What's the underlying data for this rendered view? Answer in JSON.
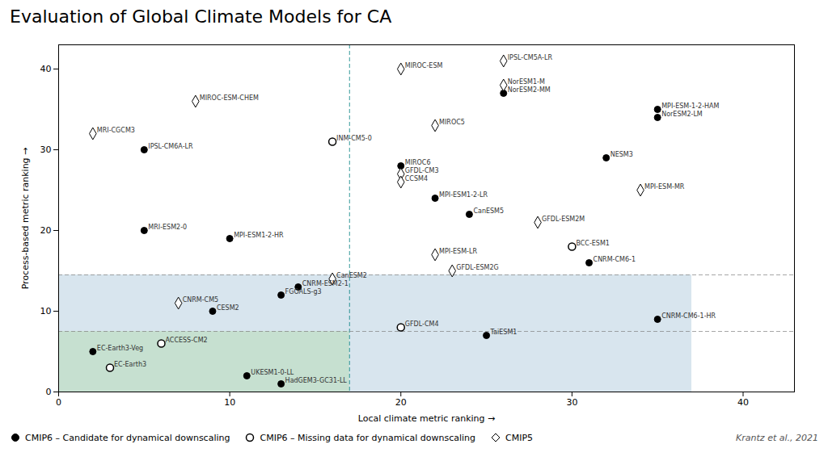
{
  "chart_data": {
    "type": "scatter",
    "title": "Evaluation of Global Climate Models for CA",
    "xlabel": "Local climate metric ranking",
    "ylabel": "Process-based metric ranking",
    "credit": "Krantz et al., 2021",
    "xlim": [
      0,
      43
    ],
    "ylim": [
      0,
      43
    ],
    "xticks": [
      0,
      10,
      20,
      30,
      40
    ],
    "yticks": [
      0,
      10,
      20,
      30,
      40
    ],
    "grid": false,
    "legend": "bottom",
    "shaded_regions": [
      {
        "x1": 0,
        "x2": 37,
        "y1": 0,
        "y2": 14.5,
        "color": "#b8cfe0"
      },
      {
        "x1": 0,
        "x2": 17,
        "y1": 0,
        "y2": 7.5,
        "color": "#b8ddb8"
      }
    ],
    "vlines": [
      {
        "x": 17,
        "color": "teal"
      }
    ],
    "hlines": [
      {
        "y": 14.5,
        "color": "gray"
      },
      {
        "y": 7.5,
        "color": "gray"
      }
    ],
    "line_style": "dashed",
    "series": [
      {
        "name": "CMIP6 – Candidate for dynamical downscaling",
        "marker": "filled_circle",
        "color": "black",
        "x": [
          5,
          5,
          10,
          9,
          13,
          14,
          2,
          11,
          13,
          20,
          22,
          24,
          25,
          26,
          31,
          32,
          35,
          35,
          35
        ],
        "y": [
          30,
          20,
          19,
          10,
          12,
          13,
          5,
          2,
          1,
          28,
          24,
          22,
          7,
          37,
          16,
          29,
          35,
          34,
          9
        ],
        "labels": [
          "IPSL-CM6A-LR",
          "MRI-ESM2-0",
          "MPI-ESM1-2-HR",
          "CESM2",
          "FGOALS-g3",
          "CNRM-ESM2-1",
          "EC-Earth3-Veg",
          "UKESM1-0-LL",
          "HadGEM3-GC31-LL",
          "MIROC6",
          "MPI-ESM1-2-LR",
          "CanESM5",
          "TaiESM1",
          "NorESM2-MM",
          "CNRM-CM6-1",
          "NESM3",
          "MPI-ESM-1-2-HAM",
          "NorESM2-LM",
          "CNRM-CM6-1-HR"
        ]
      },
      {
        "name": "CMIP6 – Missing data for dynamical downscaling",
        "marker": "open_circle",
        "color": "black",
        "x": [
          16,
          6,
          3,
          20,
          30
        ],
        "y": [
          31,
          6,
          3,
          8,
          18
        ],
        "labels": [
          "INM-CM5-0",
          "ACCESS-CM2",
          "EC-Earth3",
          "GFDL-CM4",
          "BCC-ESM1"
        ]
      },
      {
        "name": "CMIP5",
        "marker": "open_diamond",
        "color": "black",
        "x": [
          2,
          8,
          7,
          16,
          20,
          20,
          20,
          22,
          23,
          22,
          26,
          26,
          28,
          34
        ],
        "y": [
          32,
          36,
          11,
          14,
          27,
          26,
          40,
          33,
          15,
          17,
          41,
          38,
          21,
          25
        ],
        "labels": [
          "MRI-CGCM3",
          "MIROC-ESM-CHEM",
          "CNRM-CM5",
          "CanESM2",
          "GFDL-CM3",
          "CCSM4",
          "MIROC-ESM",
          "MIROC5",
          "GFDL-ESM2G",
          "MPI-ESM-LR",
          "IPSL-CM5A-LR",
          "NorESM1-M",
          "GFDL-ESM2M",
          "MPI-ESM-MR"
        ]
      }
    ]
  }
}
